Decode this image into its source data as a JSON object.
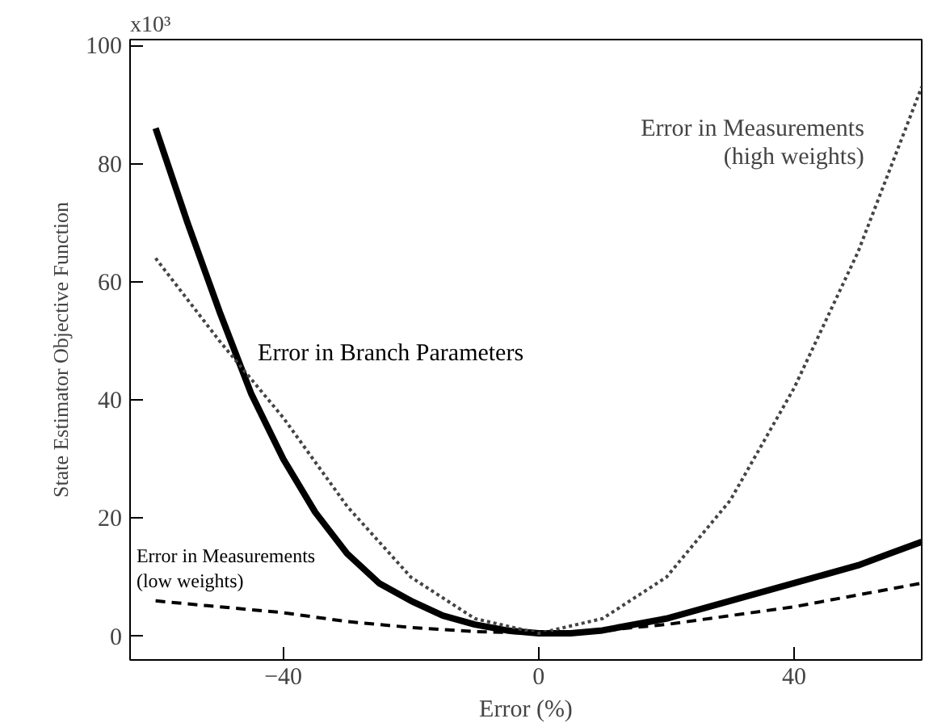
{
  "chart_data": {
    "type": "line",
    "xlabel": "Error (%)",
    "ylabel": "State Estimator Objective Function",
    "xlim": [
      -64,
      60
    ],
    "ylim": [
      -4,
      101
    ],
    "xticks": [
      -40,
      0,
      40
    ],
    "yticks": [
      0,
      20,
      40,
      60,
      80,
      100
    ],
    "annotations": [
      "x10³"
    ],
    "grid": false,
    "legend": false,
    "marker": "none",
    "series": [
      {
        "name": "Error in Branch Parameters",
        "color": "#000000",
        "line_style": "solid",
        "x": [
          -60,
          -55,
          -50,
          -45,
          -40,
          -35,
          -30,
          -25,
          -20,
          -15,
          -10,
          -5,
          0,
          5,
          10,
          20,
          30,
          40,
          50,
          55,
          60
        ],
        "values": [
          86,
          70,
          55,
          41,
          30,
          21,
          14,
          9,
          6,
          3.5,
          2,
          1,
          0.5,
          0.5,
          1,
          3,
          6,
          9,
          12,
          14,
          16
        ]
      },
      {
        "name": "Error in Measurements\n(high weights)",
        "color": "#444444",
        "line_style": "dotted",
        "x": [
          -60,
          -50,
          -40,
          -30,
          -20,
          -10,
          0,
          10,
          20,
          30,
          40,
          50,
          60
        ],
        "values": [
          64,
          50,
          37,
          22,
          10,
          3,
          0.5,
          3,
          10,
          23,
          42,
          65,
          93
        ]
      },
      {
        "name": "Error in Measurements\n(low weights)",
        "color": "#000000",
        "line_style": "dashed",
        "x": [
          -60,
          -50,
          -40,
          -30,
          -20,
          -10,
          0,
          10,
          20,
          30,
          40,
          50,
          60
        ],
        "values": [
          6,
          5,
          4,
          2.5,
          1.5,
          0.8,
          0.5,
          1,
          2,
          3.5,
          5,
          7,
          9
        ]
      }
    ]
  }
}
